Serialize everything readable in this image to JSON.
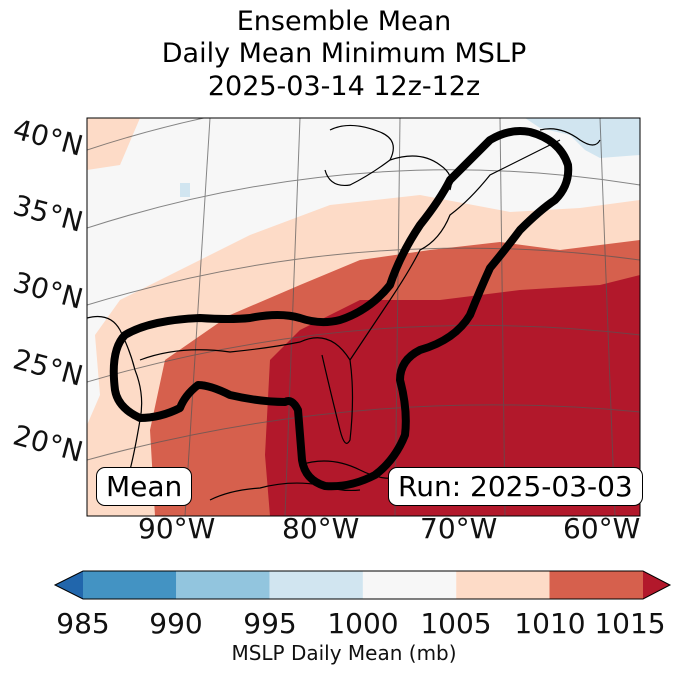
{
  "title": {
    "line1": "Ensemble Mean",
    "line2": "Daily Mean Minimum MSLP",
    "line3": "2025-03-14 12z-12z"
  },
  "map": {
    "lat_labels": [
      "40°N",
      "35°N",
      "30°N",
      "25°N",
      "20°N"
    ],
    "lon_labels": [
      "90°W",
      "80°W",
      "70°W",
      "60°W"
    ],
    "mean_box": "Mean",
    "run_box": "Run: 2025-03-03"
  },
  "colorbar": {
    "ticks": [
      "985",
      "990",
      "995",
      "1000",
      "1005",
      "1010",
      "1015"
    ],
    "label": "MSLP Daily Mean (mb)",
    "colors": {
      "below": "#2166ac",
      "b985_990": "#4393c3",
      "b990_995": "#92c5de",
      "b995_1000": "#d1e5f0",
      "b1000_1005": "#f7f7f7",
      "b1005_1010": "#fddbc7",
      "b1010_1015": "#d6604d",
      "above": "#b2182b"
    }
  }
}
